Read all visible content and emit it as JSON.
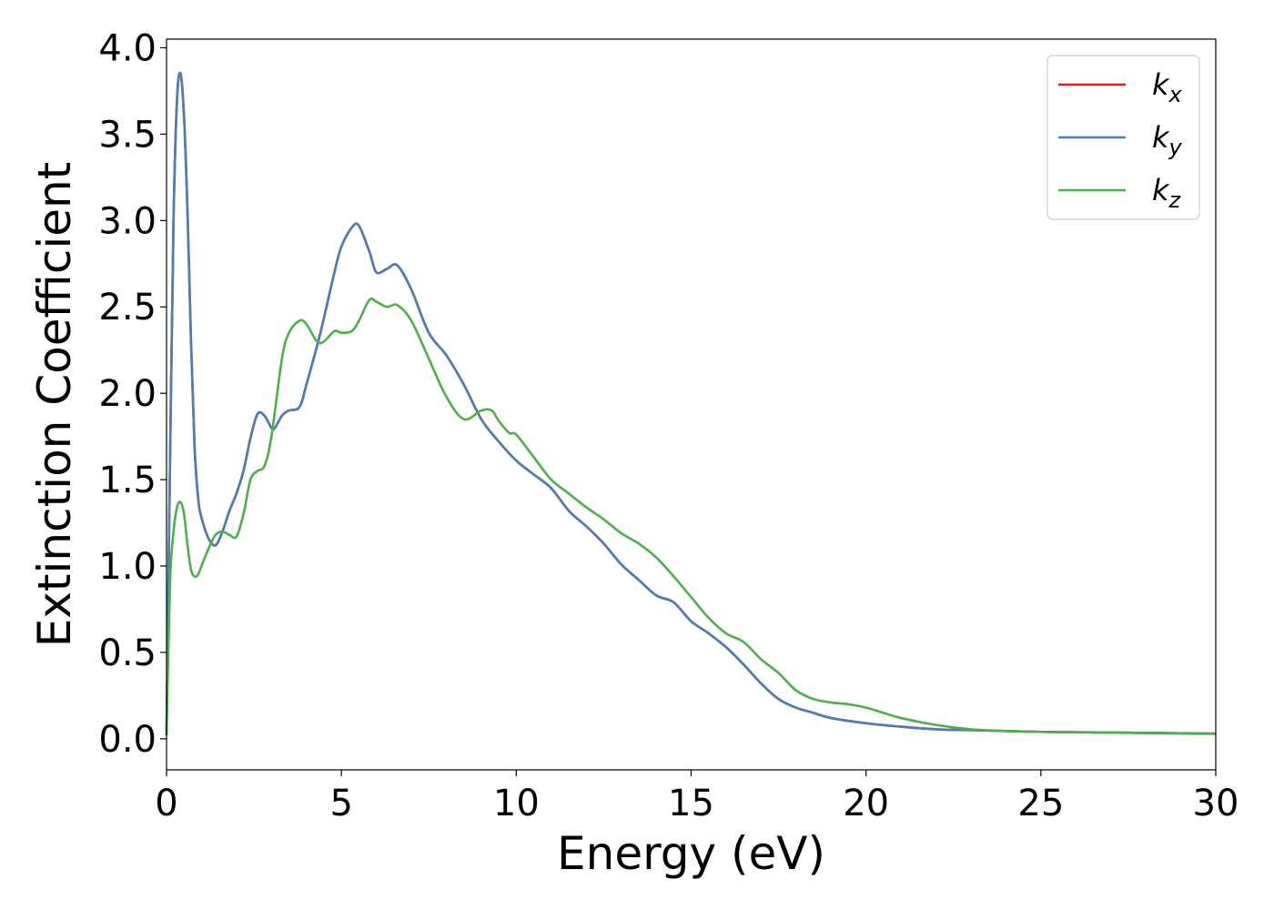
{
  "chart_data": {
    "type": "line",
    "xlabel": "Energy (eV)",
    "ylabel": "Extinction Coefficient",
    "xlim": [
      0,
      30
    ],
    "ylim": [
      -0.18,
      4.05
    ],
    "xticks": [
      0,
      5,
      10,
      15,
      20,
      25,
      30
    ],
    "xtick_labels": [
      "0",
      "5",
      "10",
      "15",
      "20",
      "25",
      "30"
    ],
    "yticks": [
      0.0,
      0.5,
      1.0,
      1.5,
      2.0,
      2.5,
      3.0,
      3.5,
      4.0
    ],
    "ytick_labels": [
      "0.0",
      "0.5",
      "1.0",
      "1.5",
      "2.0",
      "2.5",
      "3.0",
      "3.5",
      "4.0"
    ],
    "grid": false,
    "legend_position": "top-right",
    "series": [
      {
        "name": "k",
        "subscript": "x",
        "color": "#e41a1c",
        "x": [
          0,
          0.1,
          0.2,
          0.3,
          0.4,
          0.5,
          0.6,
          0.7,
          0.8,
          0.9,
          1.0,
          1.2,
          1.4,
          1.6,
          1.8,
          2.0,
          2.2,
          2.4,
          2.6,
          2.8,
          3.0,
          3.1,
          3.3,
          3.5,
          3.8,
          4.0,
          4.4,
          4.8,
          5.0,
          5.3,
          5.5,
          5.8,
          6.0,
          6.3,
          6.6,
          7.0,
          7.5,
          8.0,
          8.5,
          9.0,
          9.5,
          10.0,
          10.5,
          11.0,
          11.5,
          12.0,
          12.5,
          13.0,
          13.5,
          14.0,
          14.5,
          15.0,
          15.5,
          16.0,
          16.5,
          17.0,
          17.5,
          18.0,
          18.5,
          19.0,
          20.0,
          21.0,
          22.0,
          23.0,
          24.0,
          25.0,
          26.0,
          27.0,
          28.0,
          29.0,
          30.0
        ],
        "y": [
          0.02,
          1.6,
          3.0,
          3.7,
          3.85,
          3.6,
          3.05,
          2.3,
          1.7,
          1.4,
          1.28,
          1.16,
          1.12,
          1.2,
          1.32,
          1.42,
          1.55,
          1.74,
          1.88,
          1.87,
          1.8,
          1.8,
          1.87,
          1.9,
          1.92,
          2.05,
          2.35,
          2.7,
          2.85,
          2.96,
          2.97,
          2.82,
          2.7,
          2.72,
          2.74,
          2.6,
          2.35,
          2.22,
          2.05,
          1.85,
          1.72,
          1.61,
          1.53,
          1.45,
          1.32,
          1.23,
          1.13,
          1.01,
          0.92,
          0.83,
          0.79,
          0.68,
          0.61,
          0.53,
          0.43,
          0.32,
          0.23,
          0.18,
          0.15,
          0.12,
          0.09,
          0.07,
          0.055,
          0.05,
          0.045,
          0.04,
          0.038,
          0.036,
          0.034,
          0.032,
          0.03
        ]
      },
      {
        "name": "k",
        "subscript": "y",
        "color": "#4a7fb5",
        "x": [
          0,
          0.1,
          0.2,
          0.3,
          0.4,
          0.5,
          0.6,
          0.7,
          0.8,
          0.9,
          1.0,
          1.2,
          1.4,
          1.6,
          1.8,
          2.0,
          2.2,
          2.4,
          2.6,
          2.8,
          3.0,
          3.1,
          3.3,
          3.5,
          3.8,
          4.0,
          4.4,
          4.8,
          5.0,
          5.3,
          5.5,
          5.8,
          6.0,
          6.3,
          6.6,
          7.0,
          7.5,
          8.0,
          8.5,
          9.0,
          9.5,
          10.0,
          10.5,
          11.0,
          11.5,
          12.0,
          12.5,
          13.0,
          13.5,
          14.0,
          14.5,
          15.0,
          15.5,
          16.0,
          16.5,
          17.0,
          17.5,
          18.0,
          18.5,
          19.0,
          20.0,
          21.0,
          22.0,
          23.0,
          24.0,
          25.0,
          26.0,
          27.0,
          28.0,
          29.0,
          30.0
        ],
        "y": [
          0.02,
          1.6,
          3.0,
          3.7,
          3.85,
          3.6,
          3.05,
          2.3,
          1.7,
          1.4,
          1.28,
          1.16,
          1.12,
          1.2,
          1.32,
          1.42,
          1.55,
          1.74,
          1.88,
          1.87,
          1.8,
          1.8,
          1.87,
          1.9,
          1.92,
          2.05,
          2.35,
          2.7,
          2.85,
          2.96,
          2.97,
          2.82,
          2.7,
          2.72,
          2.74,
          2.6,
          2.35,
          2.22,
          2.05,
          1.85,
          1.72,
          1.61,
          1.53,
          1.45,
          1.32,
          1.23,
          1.13,
          1.01,
          0.92,
          0.83,
          0.79,
          0.68,
          0.61,
          0.53,
          0.43,
          0.32,
          0.23,
          0.18,
          0.15,
          0.12,
          0.09,
          0.07,
          0.055,
          0.05,
          0.045,
          0.04,
          0.038,
          0.036,
          0.034,
          0.032,
          0.03
        ]
      },
      {
        "name": "k",
        "subscript": "z",
        "color": "#4daf4a",
        "x": [
          0,
          0.1,
          0.2,
          0.3,
          0.4,
          0.5,
          0.6,
          0.7,
          0.8,
          0.9,
          1.0,
          1.2,
          1.4,
          1.6,
          1.8,
          2.0,
          2.2,
          2.4,
          2.6,
          2.8,
          3.0,
          3.3,
          3.5,
          3.8,
          4.0,
          4.3,
          4.5,
          4.8,
          5.0,
          5.3,
          5.5,
          5.8,
          6.0,
          6.3,
          6.6,
          7.0,
          7.5,
          8.0,
          8.5,
          9.0,
          9.3,
          9.5,
          9.8,
          10.0,
          10.5,
          11.0,
          11.5,
          12.0,
          12.5,
          13.0,
          13.5,
          14.0,
          14.5,
          15.0,
          15.5,
          16.0,
          16.5,
          17.0,
          17.5,
          18.0,
          18.5,
          19.0,
          19.5,
          20.0,
          20.5,
          21.0,
          22.0,
          23.0,
          24.0,
          25.0,
          26.0,
          27.0,
          28.0,
          29.0,
          30.0
        ],
        "y": [
          0.02,
          0.9,
          1.2,
          1.34,
          1.37,
          1.3,
          1.12,
          0.98,
          0.94,
          0.95,
          1.0,
          1.1,
          1.18,
          1.2,
          1.18,
          1.17,
          1.3,
          1.5,
          1.55,
          1.58,
          1.75,
          2.2,
          2.35,
          2.42,
          2.4,
          2.3,
          2.3,
          2.36,
          2.35,
          2.36,
          2.42,
          2.54,
          2.53,
          2.5,
          2.51,
          2.42,
          2.2,
          1.98,
          1.85,
          1.9,
          1.9,
          1.84,
          1.77,
          1.76,
          1.63,
          1.5,
          1.42,
          1.34,
          1.27,
          1.19,
          1.13,
          1.05,
          0.94,
          0.82,
          0.7,
          0.61,
          0.56,
          0.46,
          0.38,
          0.28,
          0.23,
          0.21,
          0.2,
          0.18,
          0.15,
          0.12,
          0.08,
          0.055,
          0.045,
          0.04,
          0.038,
          0.035,
          0.033,
          0.03,
          0.028
        ]
      }
    ]
  }
}
